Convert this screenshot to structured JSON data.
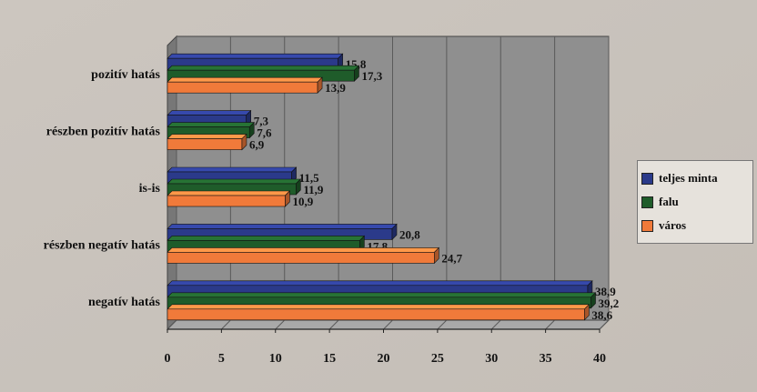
{
  "chart_data": {
    "type": "bar",
    "orientation": "horizontal",
    "categories": [
      "pozitív hatás",
      "részben pozitív hatás",
      "is-is",
      "részben negatív hatás",
      "negatív hatás"
    ],
    "series": [
      {
        "name": "teljes minta",
        "color": "#2b3a8a",
        "values": [
          15.8,
          7.3,
          11.5,
          20.8,
          38.9
        ],
        "labels": [
          "15,8",
          "7,3",
          "11,5",
          "20,8",
          "38,9"
        ]
      },
      {
        "name": "falu",
        "color": "#1f5c2a",
        "values": [
          17.3,
          7.6,
          11.9,
          17.8,
          39.2
        ],
        "labels": [
          "17,3",
          "7,6",
          "11,9",
          "17,8",
          "39,2"
        ]
      },
      {
        "name": "város",
        "color": "#f07a3a",
        "values": [
          13.9,
          6.9,
          10.9,
          24.7,
          38.6
        ],
        "labels": [
          "13,9",
          "6,9",
          "10,9",
          "24,7",
          "38,6"
        ]
      }
    ],
    "x_ticks": [
      "0",
      "5",
      "10",
      "15",
      "20",
      "25",
      "30",
      "35",
      "40"
    ],
    "xlim": [
      0,
      40
    ],
    "grid": true,
    "legend_position": "right",
    "three_d": true
  }
}
